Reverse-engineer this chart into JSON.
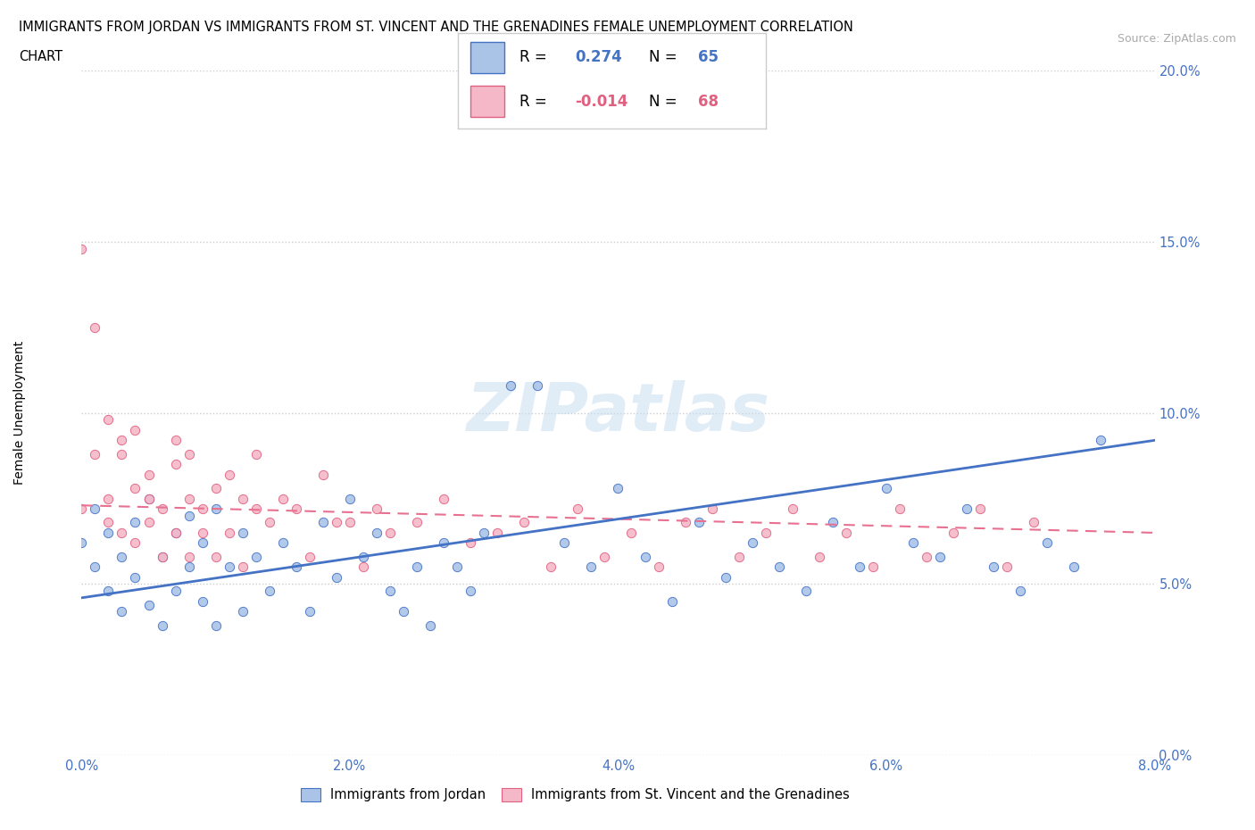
{
  "title_line1": "IMMIGRANTS FROM JORDAN VS IMMIGRANTS FROM ST. VINCENT AND THE GRENADINES FEMALE UNEMPLOYMENT CORRELATION",
  "title_line2": "CHART",
  "source": "Source: ZipAtlas.com",
  "ylabel": "Female Unemployment",
  "R_jordan": 0.274,
  "N_jordan": 65,
  "R_svg": -0.014,
  "N_svg": 68,
  "xlim": [
    0.0,
    0.08
  ],
  "ylim": [
    0.0,
    0.2
  ],
  "xticks": [
    0.0,
    0.02,
    0.04,
    0.06,
    0.08
  ],
  "xticklabels": [
    "0.0%",
    "2.0%",
    "4.0%",
    "6.0%",
    "8.0%"
  ],
  "yticks": [
    0.0,
    0.05,
    0.1,
    0.15,
    0.2
  ],
  "yticklabels": [
    "0.0%",
    "5.0%",
    "10.0%",
    "15.0%",
    "20.0%"
  ],
  "color_jordan_fill": "#aac4e8",
  "color_jordan_edge": "#4472c4",
  "color_svg_fill": "#f4b8c8",
  "color_svg_edge": "#e06080",
  "color_jordan_line": "#4472c4",
  "color_svg_line": "#e87090",
  "watermark": "ZIPatlas",
  "jordan_line_x0": 0.0,
  "jordan_line_y0": 0.046,
  "jordan_line_x1": 0.08,
  "jordan_line_y1": 0.092,
  "svg_line_x0": 0.0,
  "svg_line_y0": 0.073,
  "svg_line_x1": 0.08,
  "svg_line_y1": 0.065,
  "jordan_x": [
    0.0,
    0.001,
    0.001,
    0.002,
    0.002,
    0.003,
    0.003,
    0.004,
    0.004,
    0.005,
    0.005,
    0.006,
    0.006,
    0.007,
    0.007,
    0.008,
    0.008,
    0.009,
    0.009,
    0.01,
    0.01,
    0.011,
    0.012,
    0.012,
    0.013,
    0.014,
    0.015,
    0.016,
    0.017,
    0.018,
    0.019,
    0.02,
    0.021,
    0.022,
    0.023,
    0.024,
    0.025,
    0.026,
    0.027,
    0.028,
    0.029,
    0.03,
    0.032,
    0.034,
    0.036,
    0.038,
    0.04,
    0.042,
    0.044,
    0.046,
    0.048,
    0.05,
    0.052,
    0.054,
    0.056,
    0.058,
    0.06,
    0.062,
    0.064,
    0.066,
    0.068,
    0.07,
    0.072,
    0.074,
    0.076
  ],
  "jordan_y": [
    0.062,
    0.055,
    0.072,
    0.048,
    0.065,
    0.058,
    0.042,
    0.068,
    0.052,
    0.075,
    0.044,
    0.058,
    0.038,
    0.065,
    0.048,
    0.055,
    0.07,
    0.062,
    0.045,
    0.072,
    0.038,
    0.055,
    0.065,
    0.042,
    0.058,
    0.048,
    0.062,
    0.055,
    0.042,
    0.068,
    0.052,
    0.075,
    0.058,
    0.065,
    0.048,
    0.042,
    0.055,
    0.038,
    0.062,
    0.055,
    0.048,
    0.065,
    0.108,
    0.108,
    0.062,
    0.055,
    0.078,
    0.058,
    0.045,
    0.068,
    0.052,
    0.062,
    0.055,
    0.048,
    0.068,
    0.055,
    0.078,
    0.062,
    0.058,
    0.072,
    0.055,
    0.048,
    0.062,
    0.055,
    0.092
  ],
  "svg_x": [
    0.0,
    0.0,
    0.001,
    0.001,
    0.002,
    0.002,
    0.002,
    0.003,
    0.003,
    0.003,
    0.004,
    0.004,
    0.004,
    0.005,
    0.005,
    0.005,
    0.006,
    0.006,
    0.007,
    0.007,
    0.007,
    0.008,
    0.008,
    0.008,
    0.009,
    0.009,
    0.01,
    0.01,
    0.011,
    0.011,
    0.012,
    0.012,
    0.013,
    0.013,
    0.014,
    0.015,
    0.016,
    0.017,
    0.018,
    0.019,
    0.02,
    0.021,
    0.022,
    0.023,
    0.025,
    0.027,
    0.029,
    0.031,
    0.033,
    0.035,
    0.037,
    0.039,
    0.041,
    0.043,
    0.045,
    0.047,
    0.049,
    0.051,
    0.053,
    0.055,
    0.057,
    0.059,
    0.061,
    0.063,
    0.065,
    0.067,
    0.069,
    0.071
  ],
  "svg_y": [
    0.148,
    0.072,
    0.125,
    0.088,
    0.098,
    0.075,
    0.068,
    0.088,
    0.065,
    0.092,
    0.078,
    0.062,
    0.095,
    0.082,
    0.068,
    0.075,
    0.072,
    0.058,
    0.085,
    0.065,
    0.092,
    0.075,
    0.058,
    0.088,
    0.065,
    0.072,
    0.078,
    0.058,
    0.082,
    0.065,
    0.075,
    0.055,
    0.072,
    0.088,
    0.068,
    0.075,
    0.072,
    0.058,
    0.082,
    0.068,
    0.068,
    0.055,
    0.072,
    0.065,
    0.068,
    0.075,
    0.062,
    0.065,
    0.068,
    0.055,
    0.072,
    0.058,
    0.065,
    0.055,
    0.068,
    0.072,
    0.058,
    0.065,
    0.072,
    0.058,
    0.065,
    0.055,
    0.072,
    0.058,
    0.065,
    0.072,
    0.055,
    0.068
  ]
}
